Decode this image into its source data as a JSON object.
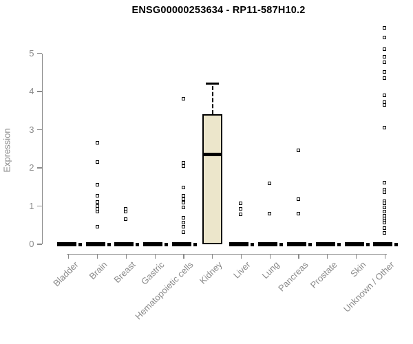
{
  "title": "ENSG00000253634 - RP11-587H10.2",
  "colors": {
    "axis": "#8a8a8a",
    "label": "#8a8a8a",
    "title": "#000000",
    "box_fill": "#ece6cb",
    "box_border": "#000000",
    "point": "#000000"
  },
  "chart_data": {
    "type": "boxplot",
    "title": "ENSG00000253634 - RP11-587H10.2",
    "xlabel": "",
    "ylabel": "Expression",
    "yticks": [
      0,
      1,
      2,
      3,
      4,
      5
    ],
    "ylim": [
      0,
      5.8
    ],
    "grid": false,
    "legend": "none",
    "categories": [
      {
        "label": "Bladder",
        "zero_bar": true,
        "points": []
      },
      {
        "label": "Brain",
        "zero_bar": true,
        "points": [
          2.65,
          2.15,
          1.55,
          1.27,
          1.1,
          1.0,
          0.92,
          0.84,
          0.45
        ]
      },
      {
        "label": "Breast",
        "zero_bar": true,
        "points": [
          0.92,
          0.85,
          0.65
        ]
      },
      {
        "label": "Gastric",
        "zero_bar": true,
        "points": []
      },
      {
        "label": "Hematopoietic cells",
        "zero_bar": true,
        "points": [
          3.8,
          2.12,
          2.04,
          1.48,
          1.27,
          1.18,
          1.09,
          0.95,
          0.68,
          0.56,
          0.45,
          0.3
        ]
      },
      {
        "label": "Kidney",
        "zero_bar": false,
        "points": []
      },
      {
        "label": "Liver",
        "zero_bar": true,
        "points": [
          1.07,
          0.91,
          0.77
        ]
      },
      {
        "label": "Lung",
        "zero_bar": true,
        "points": [
          1.58,
          0.8
        ]
      },
      {
        "label": "Pancreas",
        "zero_bar": true,
        "points": [
          2.45,
          1.18,
          0.8
        ]
      },
      {
        "label": "Prostate",
        "zero_bar": true,
        "points": []
      },
      {
        "label": "Skin",
        "zero_bar": true,
        "points": []
      },
      {
        "label": "Unknown / Other",
        "zero_bar": true,
        "points": [
          5.65,
          5.4,
          5.1,
          4.9,
          4.75,
          4.5,
          4.35,
          3.9,
          3.72,
          3.64,
          3.05,
          1.6,
          1.42,
          1.36,
          1.12,
          1.06,
          0.95,
          0.85,
          0.73,
          0.66,
          0.6,
          0.55,
          0.42,
          0.28
        ]
      }
    ],
    "boxes": [
      {
        "category": "Kidney",
        "category_index": 5,
        "q1": 0,
        "median": 2.35,
        "q3": 3.4,
        "whisker_low": 0,
        "whisker_high": 4.2
      }
    ],
    "zero_bar_note": "thick black bar at y=0 represents many samples with zero expression"
  }
}
